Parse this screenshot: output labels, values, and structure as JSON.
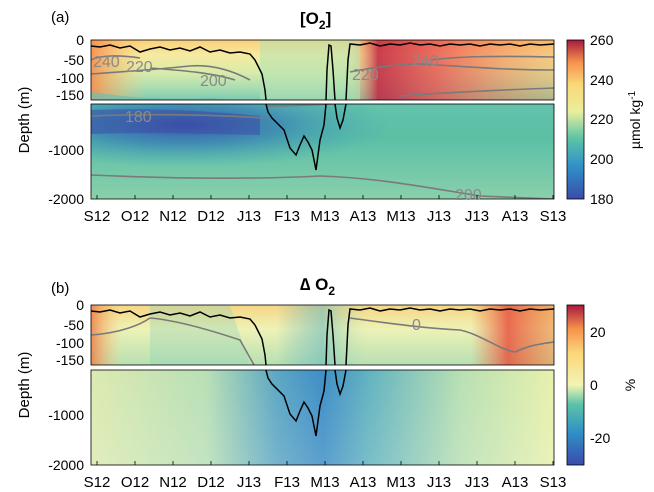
{
  "chart_data": [
    {
      "type": "heatmap",
      "panel_label": "(a)",
      "title": "[O",
      "title_sub": "2",
      "title_close": "]",
      "ylabel": "Depth (m)",
      "x_ticks": [
        "S12",
        "O12",
        "N12",
        "D12",
        "J13",
        "F13",
        "M13",
        "A13",
        "M13",
        "J13",
        "J13",
        "A13",
        "S13"
      ],
      "y_ticks_upper": [
        "0",
        "-50",
        "-100",
        "-150"
      ],
      "y_ticks_lower": [
        "-1000",
        "-2000"
      ],
      "ylim_upper": [
        -150,
        0
      ],
      "ylim_lower": [
        -2000,
        -150
      ],
      "colorbar": {
        "label": "µmol kg",
        "label_sup": "-1",
        "min": 180,
        "max": 260,
        "ticks": [
          "260",
          "240",
          "220",
          "200",
          "180"
        ]
      },
      "contour_labels": [
        {
          "text": "240",
          "at": [
            "S12",
            -45
          ]
        },
        {
          "text": "220",
          "at": [
            "O12",
            -55
          ]
        },
        {
          "text": "200",
          "at": [
            "J13",
            -90
          ]
        },
        {
          "text": "220",
          "at": [
            "A13",
            -75
          ]
        },
        {
          "text": "240",
          "at": [
            "M13",
            -45
          ]
        },
        {
          "text": "180",
          "at": [
            "O12",
            -400
          ]
        },
        {
          "text": "200",
          "at": [
            "J13",
            -1800
          ]
        }
      ],
      "mixed_layer_depth": {
        "x": [
          0,
          0.5,
          1,
          1.5,
          2,
          2.5,
          3,
          3.3,
          3.6,
          3.8,
          4,
          4.2,
          4.35,
          4.45,
          4.6,
          4.8,
          5,
          5.2,
          5.4,
          5.6,
          5.8,
          6,
          6.05,
          6.2,
          6.3,
          6.5,
          6.7,
          6.9,
          7,
          7.5,
          8,
          8.5,
          9,
          9.5,
          10,
          10.5,
          11,
          11.5,
          12
        ],
        "depth": [
          -12,
          -10,
          -15,
          -12,
          -18,
          -35,
          -40,
          -50,
          -80,
          -110,
          -150,
          -600,
          -900,
          -1200,
          -1050,
          -1450,
          -800,
          -12,
          -15,
          -12,
          -900,
          -500,
          -12,
          -15,
          -12,
          -20,
          -12,
          -10,
          -8,
          -12,
          -10,
          -12,
          -12,
          -12,
          -10,
          -12,
          -10,
          -12,
          -12
        ]
      }
    },
    {
      "type": "heatmap",
      "panel_label": "(b)",
      "title": "∆ O",
      "title_sub": "2",
      "ylabel": "Depth (m)",
      "x_ticks": [
        "S12",
        "O12",
        "N12",
        "D12",
        "J13",
        "F13",
        "M13",
        "A13",
        "M13",
        "J13",
        "J13",
        "A13",
        "S13"
      ],
      "y_ticks_upper": [
        "0",
        "-50",
        "-100",
        "-150"
      ],
      "y_ticks_lower": [
        "-1000",
        "-2000"
      ],
      "ylim_upper": [
        -150,
        0
      ],
      "ylim_lower": [
        -2000,
        -150
      ],
      "colorbar": {
        "label": "%",
        "min": -30,
        "max": 30,
        "ticks": [
          "20",
          "0",
          "-20"
        ]
      },
      "contour_labels": [
        {
          "text": "0",
          "at": [
            "M13",
            -55
          ]
        }
      ]
    }
  ]
}
